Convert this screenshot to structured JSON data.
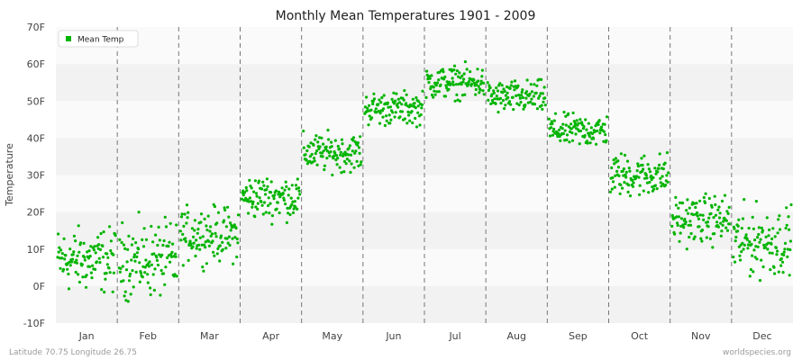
{
  "chart_data": {
    "type": "scatter",
    "title": "Monthly Mean Temperatures 1901 - 2009",
    "ylabel": "Temperature",
    "xlabel": "",
    "ylim": [
      -10,
      70
    ],
    "yticks": [
      {
        "value": -10,
        "label": "-10F"
      },
      {
        "value": 0,
        "label": "0F"
      },
      {
        "value": 10,
        "label": "10F"
      },
      {
        "value": 20,
        "label": "20F"
      },
      {
        "value": 30,
        "label": "30F"
      },
      {
        "value": 40,
        "label": "40F"
      },
      {
        "value": 50,
        "label": "50F"
      },
      {
        "value": 60,
        "label": "60F"
      },
      {
        "value": 70,
        "label": "70F"
      }
    ],
    "categories": [
      "Jan",
      "Feb",
      "Mar",
      "Apr",
      "May",
      "Jun",
      "Jul",
      "Aug",
      "Sep",
      "Oct",
      "Nov",
      "Dec"
    ],
    "grid": "horizontal bands, dashed vertical month separators",
    "legend_position": "top-left",
    "marker_color": "#00b400",
    "series": [
      {
        "name": "Mean Temp",
        "years": [
          1901,
          2009
        ],
        "month_summary": [
          {
            "month": "Jan",
            "min": -6,
            "max": 18,
            "center": 7
          },
          {
            "month": "Feb",
            "min": -6,
            "max": 20,
            "center": 7
          },
          {
            "month": "Mar",
            "min": 3,
            "max": 23,
            "center": 14
          },
          {
            "month": "Apr",
            "min": 15,
            "max": 31,
            "center": 24
          },
          {
            "month": "May",
            "min": 30,
            "max": 43,
            "center": 36
          },
          {
            "month": "Jun",
            "min": 43,
            "max": 54,
            "center": 48
          },
          {
            "month": "Jul",
            "min": 50,
            "max": 61,
            "center": 55
          },
          {
            "month": "Aug",
            "min": 46,
            "max": 57,
            "center": 51
          },
          {
            "month": "Sep",
            "min": 37,
            "max": 47,
            "center": 42
          },
          {
            "month": "Oct",
            "min": 20,
            "max": 37,
            "center": 30
          },
          {
            "month": "Nov",
            "min": 7,
            "max": 26,
            "center": 18
          },
          {
            "month": "Dec",
            "min": -4,
            "max": 24,
            "center": 12
          }
        ]
      }
    ]
  },
  "footer": {
    "location": "Latitude 70.75 Longitude 26.75",
    "source": "worldspecies.org"
  }
}
